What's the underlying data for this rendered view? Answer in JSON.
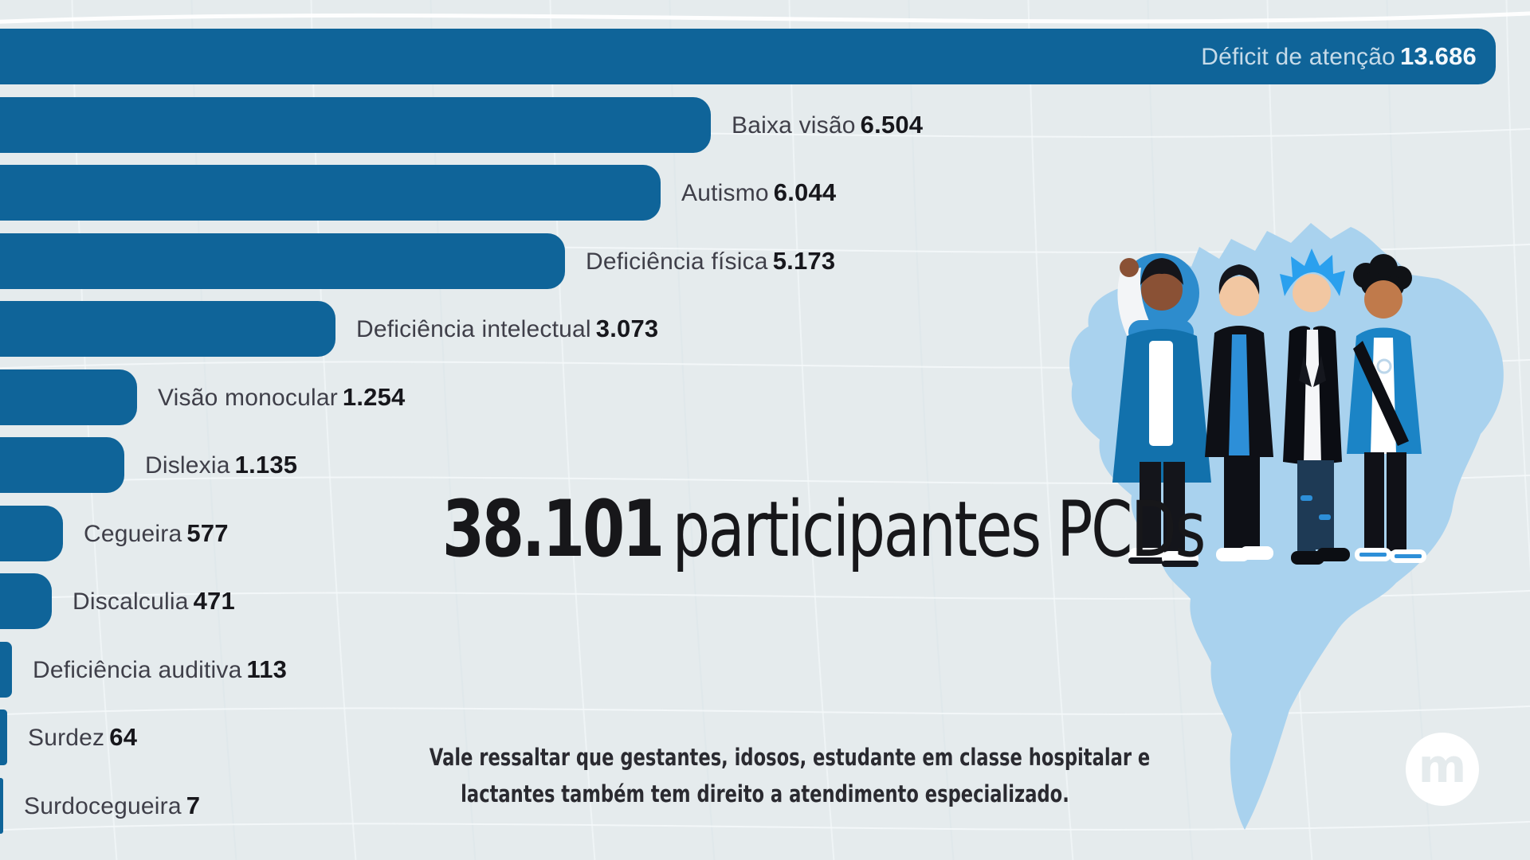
{
  "heading": {
    "number": "38.101",
    "label": "participantes PCDs"
  },
  "note": {
    "line1": "Vale ressaltar que gestantes, idosos, estudante em classe hospitalar e",
    "line2": "lactantes também tem direito a atendimento especializado."
  },
  "logo": {
    "letter": "m"
  },
  "colors": {
    "background": "#e5ebed",
    "bar": "#0f6499",
    "label_text": "#3f3f49",
    "number_text": "#17171c",
    "inside_label_text": "#c6dbe9",
    "inside_number_text": "#f3f8fc",
    "map": "#a9d2ee"
  },
  "illustration": {
    "map_icon": "brazil-map",
    "people_icon": "four-people-standing"
  },
  "chart_data": {
    "type": "bar",
    "orientation": "horizontal",
    "title": "38.101 participantes PCDs",
    "total": 38101,
    "categories": [
      "Déficit de atenção",
      "Baixa visão",
      "Autismo",
      "Deficiência física",
      "Deficiência intelectual",
      "Visão monocular",
      "Dislexia",
      "Cegueira",
      "Discalculia",
      "Deficiência auditiva",
      "Surdez",
      "Surdocegueira"
    ],
    "values": [
      13686,
      6504,
      6044,
      5173,
      3073,
      1254,
      1135,
      577,
      471,
      113,
      64,
      7
    ],
    "value_labels": [
      "13.686",
      "6.504",
      "6.044",
      "5.173",
      "3.073",
      "1.254",
      "1.135",
      "577",
      "471",
      "113",
      "64",
      "7"
    ],
    "xlim": [
      0,
      13686
    ],
    "bar_color": "#0f6499",
    "inside_label_index": 0,
    "grid": false,
    "legend": false
  }
}
